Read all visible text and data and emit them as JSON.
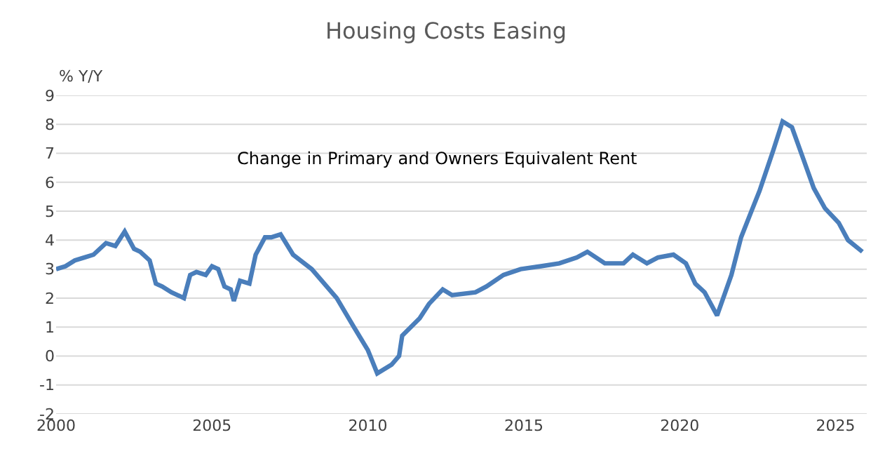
{
  "chart_data": {
    "type": "line",
    "title": "Housing Costs Easing",
    "ylabel": "% Y/Y",
    "annotations": [
      "Change in Primary and Owners Equivalent Rent"
    ],
    "xlim": [
      2000,
      2026
    ],
    "xticks": [
      2000,
      2005,
      2010,
      2015,
      2020,
      2025
    ],
    "ylim": [
      -2,
      9
    ],
    "yticks": [
      -2,
      -1,
      0,
      1,
      2,
      3,
      4,
      5,
      6,
      7,
      8,
      9
    ],
    "grid": "y",
    "marker": "none",
    "line_style": "solid",
    "series": [
      {
        "color": "#4a7ebb",
        "x": [
          2000.0,
          2000.3,
          2000.6,
          2000.9,
          2001.2,
          2001.4,
          2001.6,
          2001.9,
          2002.2,
          2002.5,
          2002.7,
          2003.0,
          2003.2,
          2003.4,
          2003.7,
          2004.1,
          2004.3,
          2004.5,
          2004.8,
          2005.0,
          2005.2,
          2005.4,
          2005.6,
          2005.7,
          2005.9,
          2006.2,
          2006.4,
          2006.7,
          2006.9,
          2007.2,
          2007.6,
          2008.2,
          2009.0,
          2009.55,
          2010.0,
          2010.3,
          2010.76,
          2011.0,
          2011.1,
          2011.66,
          2011.96,
          2012.4,
          2012.7,
          2013.45,
          2013.8,
          2014.35,
          2014.9,
          2015.55,
          2016.14,
          2016.7,
          2017.04,
          2017.6,
          2018.2,
          2018.5,
          2018.95,
          2019.3,
          2019.8,
          2020.2,
          2020.5,
          2020.8,
          2021.2,
          2021.66,
          2021.97,
          2022.3,
          2022.56,
          2023.0,
          2023.3,
          2023.6,
          2023.9,
          2024.3,
          2024.66,
          2025.1,
          2025.4,
          2025.86
        ],
        "values": [
          3.0,
          3.1,
          3.3,
          3.4,
          3.5,
          3.7,
          3.9,
          3.8,
          4.3,
          3.7,
          3.6,
          3.3,
          2.5,
          2.4,
          2.2,
          2.0,
          2.8,
          2.9,
          2.8,
          3.1,
          3.0,
          2.4,
          2.3,
          1.9,
          2.6,
          2.5,
          3.5,
          4.1,
          4.1,
          4.2,
          3.5,
          3.0,
          2.0,
          1.0,
          0.2,
          -0.6,
          -0.3,
          0.0,
          0.7,
          1.3,
          1.8,
          2.3,
          2.1,
          2.2,
          2.4,
          2.8,
          3.0,
          3.1,
          3.2,
          3.4,
          3.6,
          3.2,
          3.2,
          3.5,
          3.2,
          3.4,
          3.5,
          3.2,
          2.5,
          2.2,
          1.4,
          2.8,
          4.1,
          5.0,
          5.7,
          7.1,
          8.1,
          7.9,
          7.0,
          5.8,
          5.1,
          4.6,
          4.0,
          3.6
        ]
      }
    ]
  }
}
